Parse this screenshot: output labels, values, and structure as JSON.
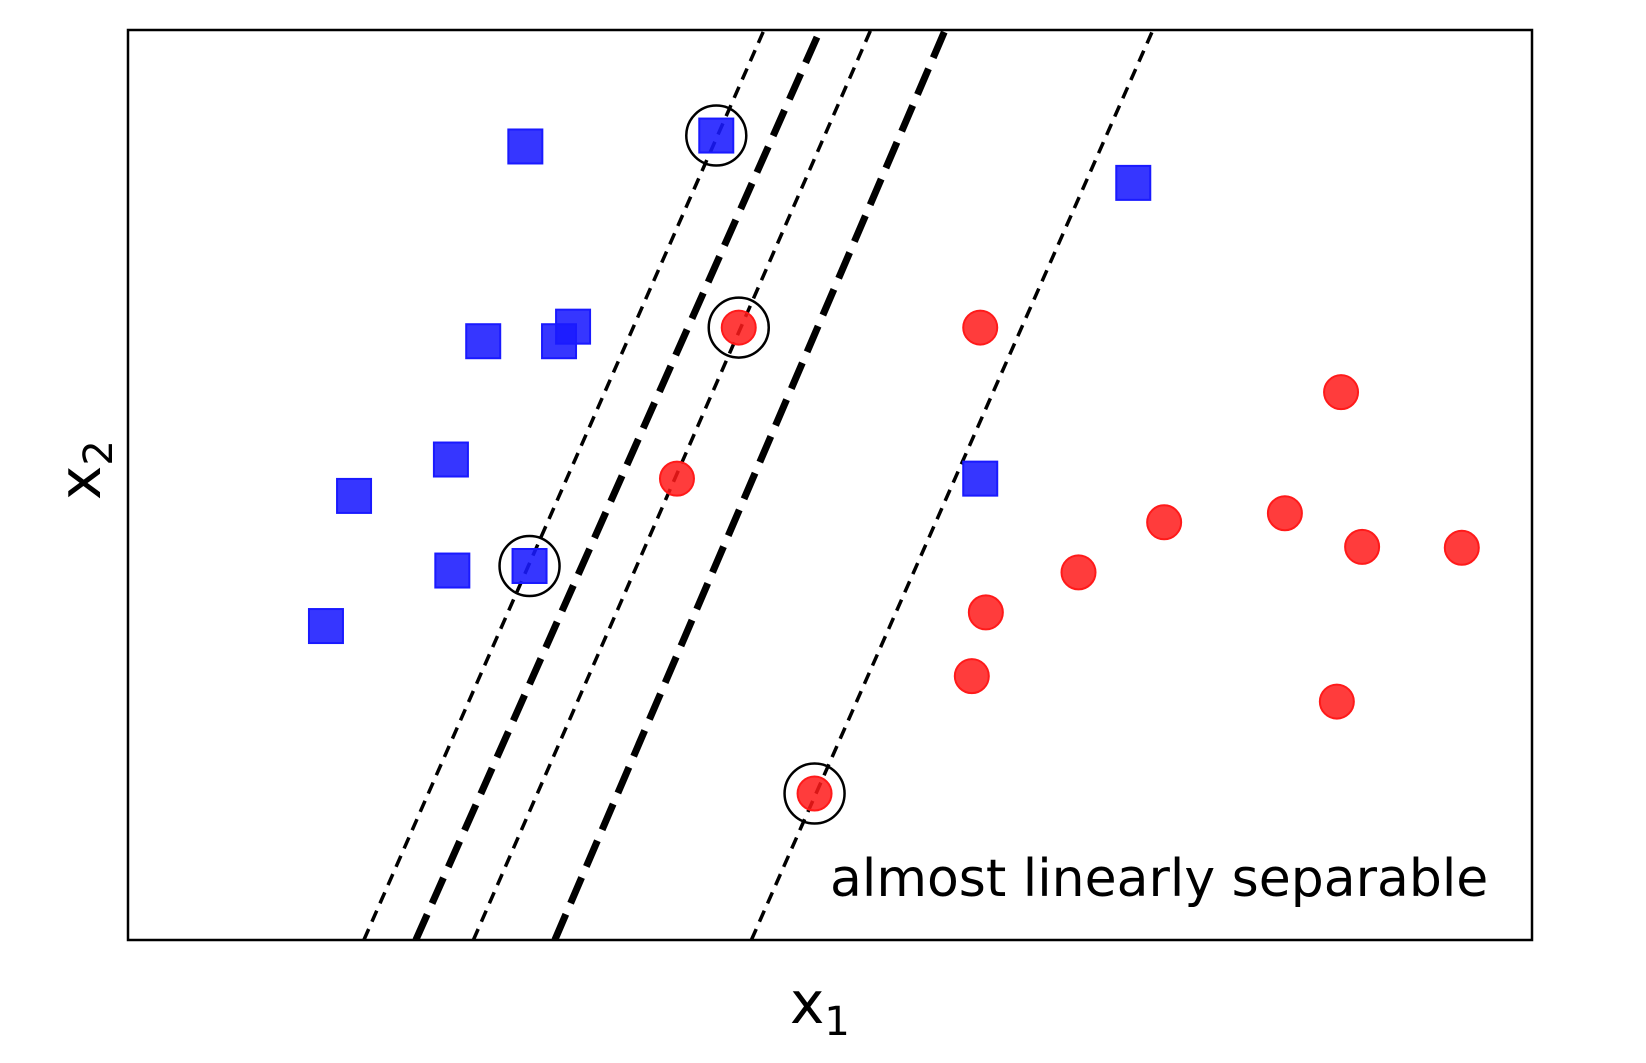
{
  "chart_data": {
    "type": "scatter",
    "title": "",
    "xlabel": "x",
    "xlabel_sub": "1",
    "ylabel": "x",
    "ylabel_sub": "2",
    "annotation": "almost linearly separable",
    "xlim": [
      0,
      10
    ],
    "ylim": [
      0,
      10
    ],
    "ticks": false,
    "grid": false,
    "colors": {
      "class_a": "#1a1aff",
      "class_b": "#ff1a1a",
      "lines": "#000000",
      "support_ring": "#000000"
    },
    "series": [
      {
        "class": "a",
        "marker": "square",
        "x": [
          2.83,
          2.53,
          3.07,
          3.17,
          2.3,
          1.61,
          2.31,
          1.41,
          7.16,
          6.07,
          2.86,
          4.19
        ],
        "y": [
          8.72,
          6.58,
          6.58,
          6.74,
          5.28,
          4.88,
          4.06,
          3.45,
          8.32,
          5.07,
          4.11,
          8.84
        ]
      },
      {
        "class": "b",
        "marker": "circle",
        "x": [
          6.07,
          8.64,
          8.24,
          7.38,
          8.79,
          9.5,
          6.11,
          6.01,
          8.61,
          6.77,
          3.91,
          4.35,
          4.89
        ],
        "y": [
          6.73,
          6.02,
          4.69,
          4.59,
          4.32,
          4.31,
          3.6,
          2.9,
          2.62,
          4.04,
          5.07,
          6.73,
          1.61
        ]
      }
    ],
    "support_vectors": {
      "x": [
        4.19,
        2.86,
        4.35,
        4.89
      ],
      "y": [
        8.84,
        4.11,
        6.73,
        1.61
      ]
    },
    "boundaries": [
      {
        "role": "decision-a",
        "style": "thick-dashed",
        "x1": 2.05,
        "x2": 4.93
      },
      {
        "role": "margin-a-left",
        "style": "thin-dashed",
        "x1": 1.68,
        "x2": 4.53
      },
      {
        "role": "margin-a-right",
        "style": "thin-dashed",
        "x1": 2.46,
        "x2": 5.29
      },
      {
        "role": "decision-b",
        "style": "thick-dashed",
        "x1": 3.04,
        "x2": 5.82
      },
      {
        "role": "margin-b-right",
        "style": "thin-dashed",
        "x1": 4.44,
        "x2": 7.3
      }
    ]
  }
}
